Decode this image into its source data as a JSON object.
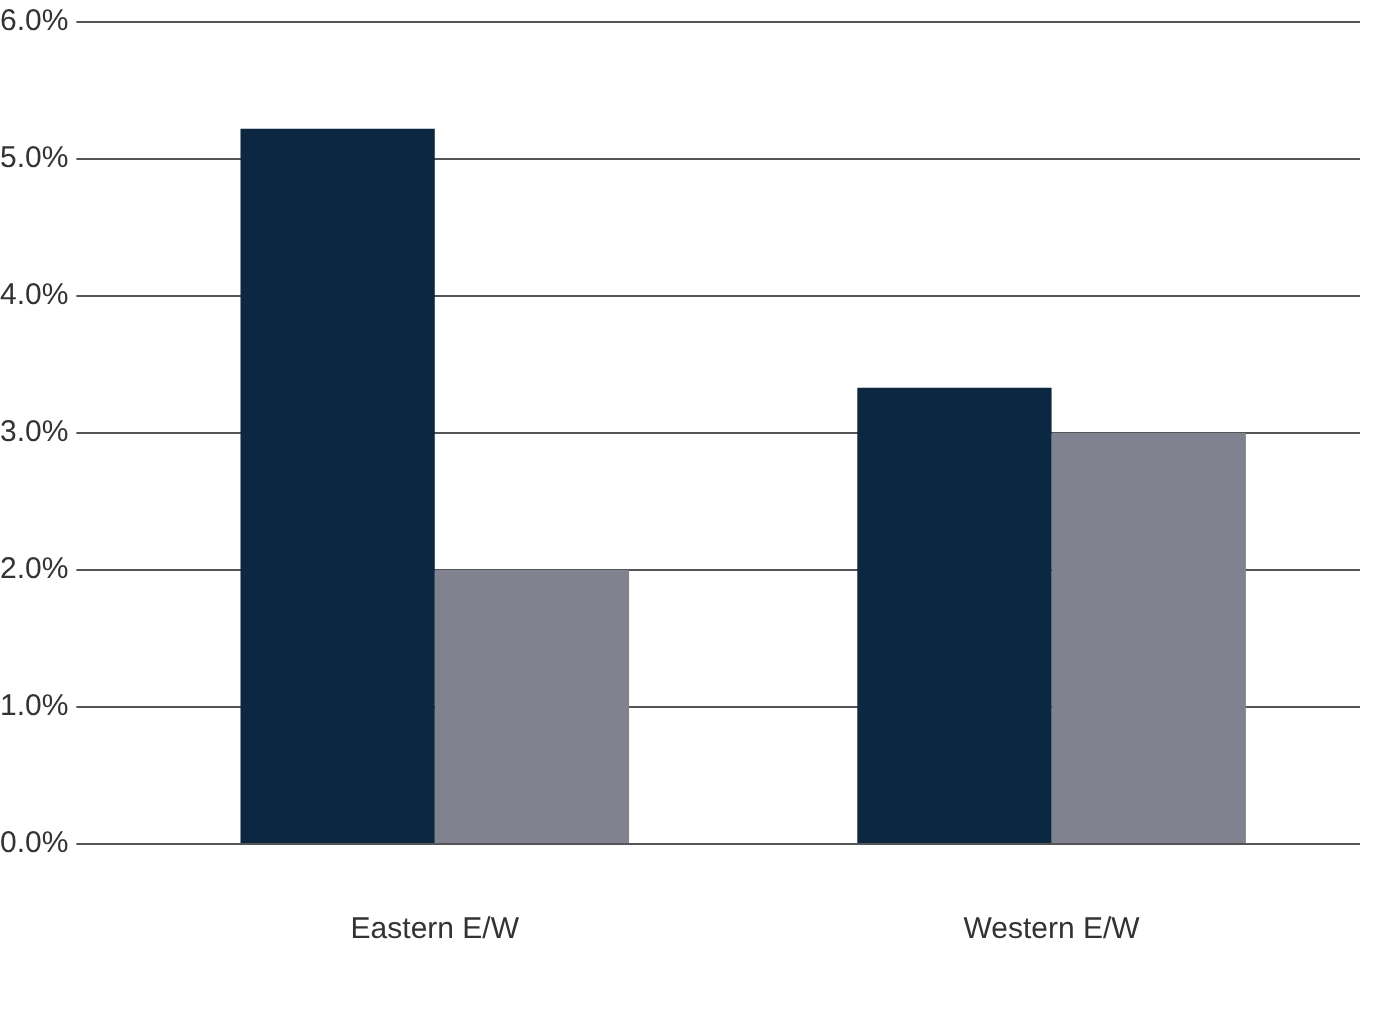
{
  "chart_data": {
    "type": "bar",
    "categories": [
      "Eastern E/W",
      "Western E/W"
    ],
    "series": [
      {
        "color": "#0c2742",
        "values": [
          5.22,
          3.33
        ]
      },
      {
        "color": "#808290",
        "values": [
          2.0,
          3.0
        ]
      }
    ],
    "ylim": [
      0,
      6
    ],
    "yticks": [
      {
        "value": 0,
        "label": "0.0%"
      },
      {
        "value": 1,
        "label": "1.0%"
      },
      {
        "value": 2,
        "label": "2.0%"
      },
      {
        "value": 3,
        "label": "3.0%"
      },
      {
        "value": 4,
        "label": "4.0%"
      },
      {
        "value": 5,
        "label": "5.0%"
      },
      {
        "value": 6,
        "label": "6.0%"
      }
    ],
    "grid": "y",
    "legend": false
  }
}
